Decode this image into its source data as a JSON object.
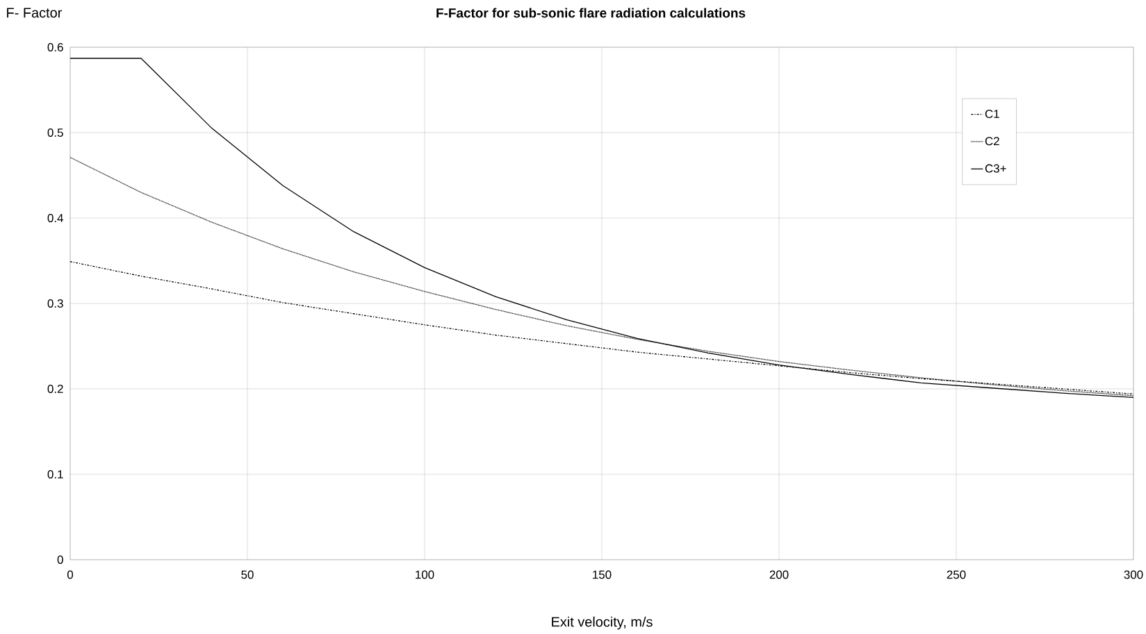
{
  "chart_data": {
    "type": "line",
    "title": "F-Factor for sub-sonic flare radiation calculations",
    "xlabel": "Exit velocity, m/s",
    "ylabel": "F- Factor",
    "x": [
      0,
      20,
      40,
      60,
      80,
      100,
      120,
      140,
      160,
      180,
      200,
      220,
      240,
      260,
      280,
      300
    ],
    "series": [
      {
        "name": "C1",
        "color": "#000000",
        "line_style": "dashdot",
        "values": [
          0.349,
          0.332,
          0.317,
          0.301,
          0.288,
          0.275,
          0.263,
          0.253,
          0.243,
          0.235,
          0.227,
          0.219,
          0.212,
          0.206,
          0.2,
          0.194
        ]
      },
      {
        "name": "C2",
        "color": "#000000",
        "line_style": "dotted",
        "values": [
          0.471,
          0.43,
          0.395,
          0.364,
          0.337,
          0.314,
          0.293,
          0.274,
          0.258,
          0.244,
          0.232,
          0.222,
          0.213,
          0.205,
          0.198,
          0.192
        ]
      },
      {
        "name": "C3+",
        "color": "#000000",
        "line_style": "solid",
        "values": [
          0.587,
          0.587,
          0.505,
          0.438,
          0.384,
          0.342,
          0.308,
          0.281,
          0.259,
          0.242,
          0.228,
          0.217,
          0.207,
          0.201,
          0.195,
          0.19
        ]
      }
    ],
    "xlim": [
      0,
      300
    ],
    "xticks": [
      0,
      50,
      100,
      150,
      200,
      250,
      300
    ],
    "ylim": [
      0,
      0.6
    ],
    "yticks": [
      0,
      0.1,
      0.2,
      0.3,
      0.4,
      0.5,
      0.6
    ],
    "grid": true,
    "legend": "top right",
    "marker": "none"
  }
}
